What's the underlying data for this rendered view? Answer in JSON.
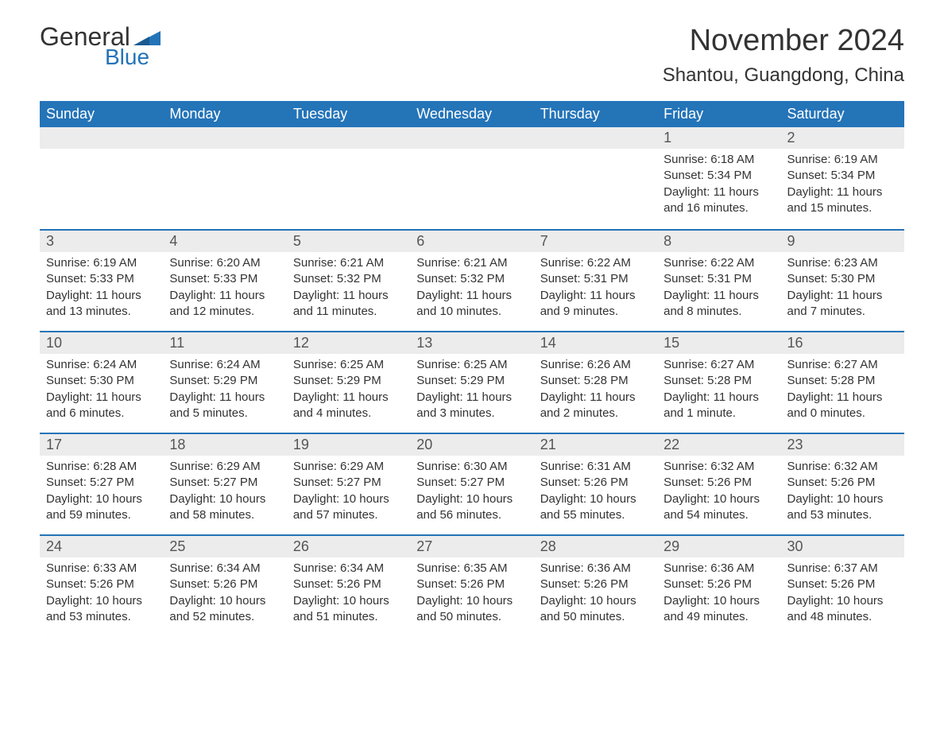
{
  "logo": {
    "text1": "General",
    "text2": "Blue"
  },
  "title": "November 2024",
  "location": "Shantou, Guangdong, China",
  "colors": {
    "header_bg": "#2474b8",
    "header_text": "#ffffff",
    "daynum_bg": "#ececec",
    "border_top": "#2474b8",
    "body_text": "#333333",
    "logo_blue": "#2474b8"
  },
  "day_headers": [
    "Sunday",
    "Monday",
    "Tuesday",
    "Wednesday",
    "Thursday",
    "Friday",
    "Saturday"
  ],
  "weeks": [
    [
      null,
      null,
      null,
      null,
      null,
      {
        "n": "1",
        "sunrise": "Sunrise: 6:18 AM",
        "sunset": "Sunset: 5:34 PM",
        "daylight": "Daylight: 11 hours and 16 minutes."
      },
      {
        "n": "2",
        "sunrise": "Sunrise: 6:19 AM",
        "sunset": "Sunset: 5:34 PM",
        "daylight": "Daylight: 11 hours and 15 minutes."
      }
    ],
    [
      {
        "n": "3",
        "sunrise": "Sunrise: 6:19 AM",
        "sunset": "Sunset: 5:33 PM",
        "daylight": "Daylight: 11 hours and 13 minutes."
      },
      {
        "n": "4",
        "sunrise": "Sunrise: 6:20 AM",
        "sunset": "Sunset: 5:33 PM",
        "daylight": "Daylight: 11 hours and 12 minutes."
      },
      {
        "n": "5",
        "sunrise": "Sunrise: 6:21 AM",
        "sunset": "Sunset: 5:32 PM",
        "daylight": "Daylight: 11 hours and 11 minutes."
      },
      {
        "n": "6",
        "sunrise": "Sunrise: 6:21 AM",
        "sunset": "Sunset: 5:32 PM",
        "daylight": "Daylight: 11 hours and 10 minutes."
      },
      {
        "n": "7",
        "sunrise": "Sunrise: 6:22 AM",
        "sunset": "Sunset: 5:31 PM",
        "daylight": "Daylight: 11 hours and 9 minutes."
      },
      {
        "n": "8",
        "sunrise": "Sunrise: 6:22 AM",
        "sunset": "Sunset: 5:31 PM",
        "daylight": "Daylight: 11 hours and 8 minutes."
      },
      {
        "n": "9",
        "sunrise": "Sunrise: 6:23 AM",
        "sunset": "Sunset: 5:30 PM",
        "daylight": "Daylight: 11 hours and 7 minutes."
      }
    ],
    [
      {
        "n": "10",
        "sunrise": "Sunrise: 6:24 AM",
        "sunset": "Sunset: 5:30 PM",
        "daylight": "Daylight: 11 hours and 6 minutes."
      },
      {
        "n": "11",
        "sunrise": "Sunrise: 6:24 AM",
        "sunset": "Sunset: 5:29 PM",
        "daylight": "Daylight: 11 hours and 5 minutes."
      },
      {
        "n": "12",
        "sunrise": "Sunrise: 6:25 AM",
        "sunset": "Sunset: 5:29 PM",
        "daylight": "Daylight: 11 hours and 4 minutes."
      },
      {
        "n": "13",
        "sunrise": "Sunrise: 6:25 AM",
        "sunset": "Sunset: 5:29 PM",
        "daylight": "Daylight: 11 hours and 3 minutes."
      },
      {
        "n": "14",
        "sunrise": "Sunrise: 6:26 AM",
        "sunset": "Sunset: 5:28 PM",
        "daylight": "Daylight: 11 hours and 2 minutes."
      },
      {
        "n": "15",
        "sunrise": "Sunrise: 6:27 AM",
        "sunset": "Sunset: 5:28 PM",
        "daylight": "Daylight: 11 hours and 1 minute."
      },
      {
        "n": "16",
        "sunrise": "Sunrise: 6:27 AM",
        "sunset": "Sunset: 5:28 PM",
        "daylight": "Daylight: 11 hours and 0 minutes."
      }
    ],
    [
      {
        "n": "17",
        "sunrise": "Sunrise: 6:28 AM",
        "sunset": "Sunset: 5:27 PM",
        "daylight": "Daylight: 10 hours and 59 minutes."
      },
      {
        "n": "18",
        "sunrise": "Sunrise: 6:29 AM",
        "sunset": "Sunset: 5:27 PM",
        "daylight": "Daylight: 10 hours and 58 minutes."
      },
      {
        "n": "19",
        "sunrise": "Sunrise: 6:29 AM",
        "sunset": "Sunset: 5:27 PM",
        "daylight": "Daylight: 10 hours and 57 minutes."
      },
      {
        "n": "20",
        "sunrise": "Sunrise: 6:30 AM",
        "sunset": "Sunset: 5:27 PM",
        "daylight": "Daylight: 10 hours and 56 minutes."
      },
      {
        "n": "21",
        "sunrise": "Sunrise: 6:31 AM",
        "sunset": "Sunset: 5:26 PM",
        "daylight": "Daylight: 10 hours and 55 minutes."
      },
      {
        "n": "22",
        "sunrise": "Sunrise: 6:32 AM",
        "sunset": "Sunset: 5:26 PM",
        "daylight": "Daylight: 10 hours and 54 minutes."
      },
      {
        "n": "23",
        "sunrise": "Sunrise: 6:32 AM",
        "sunset": "Sunset: 5:26 PM",
        "daylight": "Daylight: 10 hours and 53 minutes."
      }
    ],
    [
      {
        "n": "24",
        "sunrise": "Sunrise: 6:33 AM",
        "sunset": "Sunset: 5:26 PM",
        "daylight": "Daylight: 10 hours and 53 minutes."
      },
      {
        "n": "25",
        "sunrise": "Sunrise: 6:34 AM",
        "sunset": "Sunset: 5:26 PM",
        "daylight": "Daylight: 10 hours and 52 minutes."
      },
      {
        "n": "26",
        "sunrise": "Sunrise: 6:34 AM",
        "sunset": "Sunset: 5:26 PM",
        "daylight": "Daylight: 10 hours and 51 minutes."
      },
      {
        "n": "27",
        "sunrise": "Sunrise: 6:35 AM",
        "sunset": "Sunset: 5:26 PM",
        "daylight": "Daylight: 10 hours and 50 minutes."
      },
      {
        "n": "28",
        "sunrise": "Sunrise: 6:36 AM",
        "sunset": "Sunset: 5:26 PM",
        "daylight": "Daylight: 10 hours and 50 minutes."
      },
      {
        "n": "29",
        "sunrise": "Sunrise: 6:36 AM",
        "sunset": "Sunset: 5:26 PM",
        "daylight": "Daylight: 10 hours and 49 minutes."
      },
      {
        "n": "30",
        "sunrise": "Sunrise: 6:37 AM",
        "sunset": "Sunset: 5:26 PM",
        "daylight": "Daylight: 10 hours and 48 minutes."
      }
    ]
  ]
}
